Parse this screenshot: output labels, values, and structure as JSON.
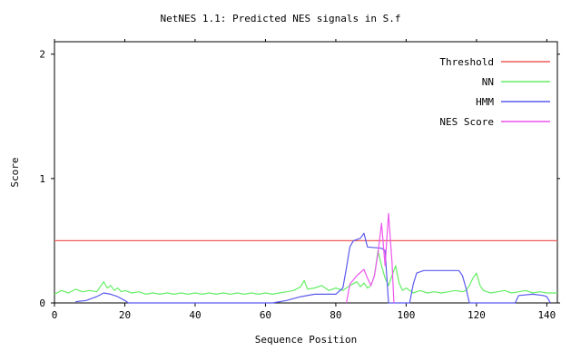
{
  "chart_data": {
    "type": "line",
    "title": "NetNES 1.1: Predicted NES signals in S.f",
    "xlabel": "Sequence Position",
    "ylabel": "Score",
    "xlim": [
      0,
      143
    ],
    "ylim": [
      0,
      2.1
    ],
    "x_ticks": [
      0,
      20,
      40,
      60,
      80,
      100,
      120,
      140
    ],
    "y_ticks": [
      0,
      1,
      2
    ],
    "legend_position": "top-right",
    "series": [
      {
        "name": "Threshold",
        "color": "#f05a5a",
        "points": [
          [
            0,
            0.5
          ],
          [
            143,
            0.5
          ]
        ]
      },
      {
        "name": "NN",
        "color": "#66ee66",
        "points": [
          [
            0,
            0.07
          ],
          [
            2,
            0.1
          ],
          [
            4,
            0.08
          ],
          [
            6,
            0.11
          ],
          [
            8,
            0.09
          ],
          [
            10,
            0.1
          ],
          [
            12,
            0.09
          ],
          [
            13,
            0.13
          ],
          [
            14,
            0.17
          ],
          [
            15,
            0.12
          ],
          [
            16,
            0.14
          ],
          [
            17,
            0.1
          ],
          [
            18,
            0.12
          ],
          [
            19,
            0.09
          ],
          [
            20,
            0.1
          ],
          [
            22,
            0.08
          ],
          [
            24,
            0.09
          ],
          [
            26,
            0.07
          ],
          [
            28,
            0.08
          ],
          [
            30,
            0.07
          ],
          [
            32,
            0.08
          ],
          [
            34,
            0.07
          ],
          [
            36,
            0.08
          ],
          [
            38,
            0.07
          ],
          [
            40,
            0.08
          ],
          [
            42,
            0.07
          ],
          [
            44,
            0.08
          ],
          [
            46,
            0.07
          ],
          [
            48,
            0.08
          ],
          [
            50,
            0.07
          ],
          [
            52,
            0.08
          ],
          [
            54,
            0.07
          ],
          [
            56,
            0.08
          ],
          [
            58,
            0.07
          ],
          [
            60,
            0.08
          ],
          [
            62,
            0.07
          ],
          [
            64,
            0.08
          ],
          [
            66,
            0.09
          ],
          [
            68,
            0.1
          ],
          [
            70,
            0.13
          ],
          [
            71,
            0.18
          ],
          [
            72,
            0.11
          ],
          [
            74,
            0.12
          ],
          [
            76,
            0.14
          ],
          [
            78,
            0.1
          ],
          [
            80,
            0.12
          ],
          [
            82,
            0.1
          ],
          [
            84,
            0.14
          ],
          [
            86,
            0.17
          ],
          [
            87,
            0.13
          ],
          [
            88,
            0.16
          ],
          [
            89,
            0.12
          ],
          [
            90,
            0.14
          ],
          [
            91,
            0.22
          ],
          [
            92,
            0.42
          ],
          [
            93,
            0.3
          ],
          [
            94,
            0.2
          ],
          [
            95,
            0.14
          ],
          [
            96,
            0.22
          ],
          [
            97,
            0.3
          ],
          [
            98,
            0.16
          ],
          [
            99,
            0.1
          ],
          [
            100,
            0.12
          ],
          [
            102,
            0.08
          ],
          [
            104,
            0.1
          ],
          [
            106,
            0.08
          ],
          [
            108,
            0.09
          ],
          [
            110,
            0.08
          ],
          [
            112,
            0.09
          ],
          [
            114,
            0.1
          ],
          [
            116,
            0.09
          ],
          [
            117,
            0.1
          ],
          [
            118,
            0.14
          ],
          [
            119,
            0.2
          ],
          [
            120,
            0.24
          ],
          [
            121,
            0.14
          ],
          [
            122,
            0.1
          ],
          [
            124,
            0.08
          ],
          [
            126,
            0.09
          ],
          [
            128,
            0.1
          ],
          [
            130,
            0.08
          ],
          [
            132,
            0.09
          ],
          [
            134,
            0.1
          ],
          [
            136,
            0.08
          ],
          [
            138,
            0.09
          ],
          [
            140,
            0.08
          ],
          [
            143,
            0.08
          ]
        ]
      },
      {
        "name": "HMM",
        "color": "#5a5aee",
        "points": [
          [
            6,
            0.01
          ],
          [
            9,
            0.02
          ],
          [
            12,
            0.05
          ],
          [
            14,
            0.08
          ],
          [
            16,
            0.07
          ],
          [
            18,
            0.05
          ],
          [
            20,
            0.02
          ],
          [
            21,
            0.0
          ],
          [
            25,
            0.0
          ],
          [
            38,
            0.0
          ],
          [
            62,
            0.0
          ],
          [
            66,
            0.02
          ],
          [
            70,
            0.05
          ],
          [
            74,
            0.07
          ],
          [
            80,
            0.07
          ],
          [
            82,
            0.12
          ],
          [
            83,
            0.28
          ],
          [
            84,
            0.45
          ],
          [
            85,
            0.5
          ],
          [
            87,
            0.52
          ],
          [
            88,
            0.56
          ],
          [
            89,
            0.45
          ],
          [
            93,
            0.44
          ],
          [
            94,
            0.42
          ],
          [
            95,
            0.0
          ],
          [
            101,
            0.0
          ],
          [
            102,
            0.15
          ],
          [
            103,
            0.24
          ],
          [
            105,
            0.26
          ],
          [
            115,
            0.26
          ],
          [
            116,
            0.22
          ],
          [
            117,
            0.12
          ],
          [
            118,
            0.0
          ],
          [
            131,
            0.0
          ],
          [
            132,
            0.06
          ],
          [
            136,
            0.07
          ],
          [
            139,
            0.06
          ],
          [
            140,
            0.05
          ],
          [
            141,
            0.0
          ]
        ]
      },
      {
        "name": "NES Score",
        "color": "#ee55ee",
        "points": [
          [
            83,
            0.0
          ],
          [
            84,
            0.15
          ],
          [
            86,
            0.22
          ],
          [
            88,
            0.27
          ],
          [
            89,
            0.2
          ],
          [
            90,
            0.14
          ],
          [
            91,
            0.22
          ],
          [
            92,
            0.4
          ],
          [
            93,
            0.64
          ],
          [
            94,
            0.3
          ],
          [
            95,
            0.72
          ],
          [
            96,
            0.32
          ],
          [
            96.5,
            0.0
          ]
        ]
      }
    ]
  }
}
